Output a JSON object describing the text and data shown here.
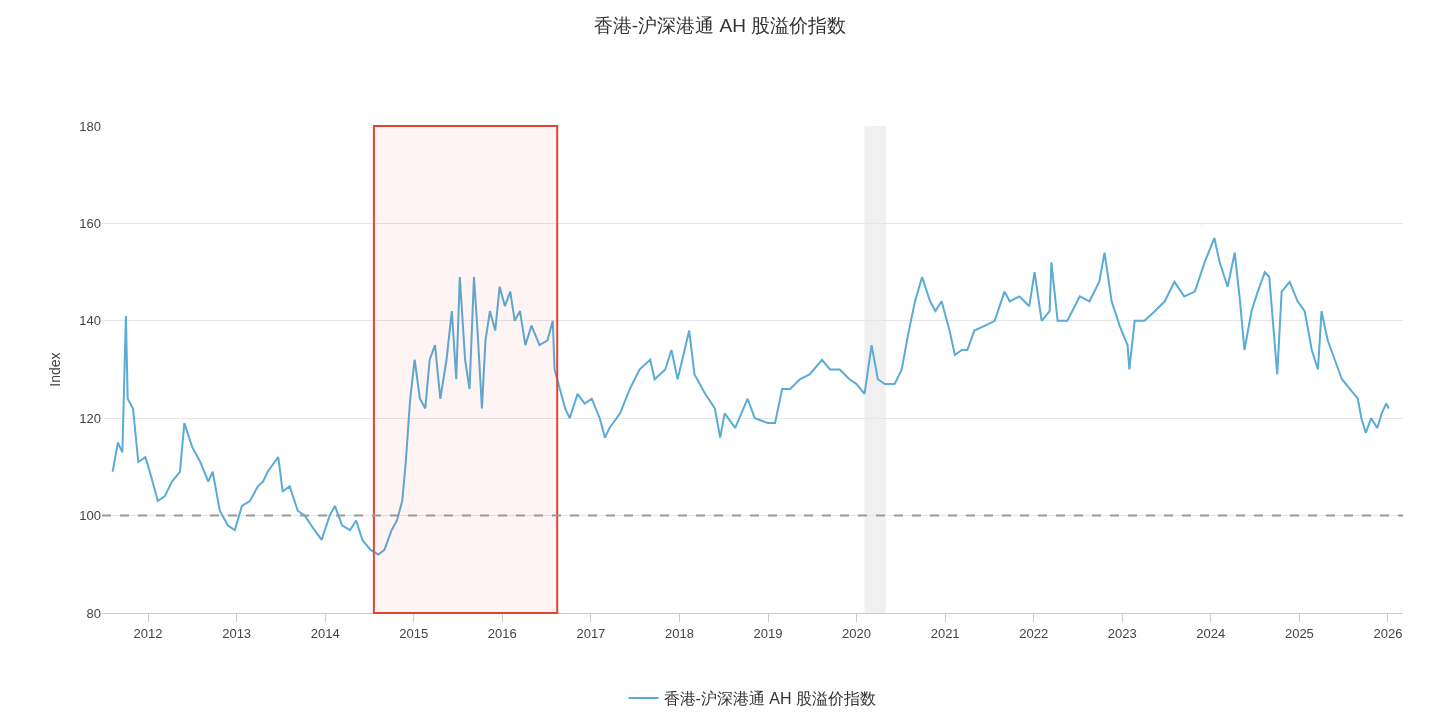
{
  "chart_data": {
    "type": "line",
    "title": "香港-沪深港通 AH 股溢价指数",
    "ylabel": "Index",
    "xlim": [
      2011.48,
      2026.17
    ],
    "xticks": [
      2012,
      2013,
      2014,
      2015,
      2016,
      2017,
      2018,
      2019,
      2020,
      2021,
      2022,
      2023,
      2024,
      2025,
      2026
    ],
    "ylim": [
      80,
      180
    ],
    "yticks": [
      80,
      100,
      120,
      140,
      160,
      180
    ],
    "grid": "y",
    "legend": "bottom",
    "marker": "none",
    "line_style": "solid",
    "x": [
      2011.6,
      2011.66,
      2011.71,
      2011.75,
      2011.77,
      2011.83,
      2011.89,
      2011.97,
      2012.02,
      2012.11,
      2012.19,
      2012.27,
      2012.36,
      2012.41,
      2012.5,
      2012.59,
      2012.68,
      2012.73,
      2012.81,
      2012.9,
      2012.98,
      2013.06,
      2013.15,
      2013.24,
      2013.3,
      2013.35,
      2013.47,
      2013.52,
      2013.6,
      2013.69,
      2013.77,
      2013.88,
      2013.96,
      2014.05,
      2014.11,
      2014.19,
      2014.28,
      2014.35,
      2014.42,
      2014.51,
      2014.6,
      2014.67,
      2014.75,
      2014.81,
      2014.87,
      2014.91,
      2014.96,
      2015.01,
      2015.07,
      2015.13,
      2015.18,
      2015.24,
      2015.3,
      2015.37,
      2015.43,
      2015.48,
      2015.52,
      2015.58,
      2015.63,
      2015.68,
      2015.72,
      2015.77,
      2015.81,
      2015.86,
      2015.92,
      2015.97,
      2016.03,
      2016.09,
      2016.14,
      2016.2,
      2016.26,
      2016.33,
      2016.42,
      2016.51,
      2016.57,
      2016.59,
      2016.65,
      2016.71,
      2016.76,
      2016.85,
      2016.93,
      2017.01,
      2017.1,
      2017.16,
      2017.21,
      2017.33,
      2017.44,
      2017.55,
      2017.67,
      2017.72,
      2017.84,
      2017.91,
      2017.98,
      2018.11,
      2018.17,
      2018.29,
      2018.4,
      2018.46,
      2018.51,
      2018.63,
      2018.77,
      2018.85,
      2019.0,
      2019.08,
      2019.16,
      2019.25,
      2019.36,
      2019.47,
      2019.61,
      2019.7,
      2019.81,
      2019.92,
      2020.0,
      2020.09,
      2020.17,
      2020.24,
      2020.32,
      2020.43,
      2020.51,
      2020.58,
      2020.66,
      2020.74,
      2020.83,
      2020.89,
      2020.96,
      2021.05,
      2021.11,
      2021.19,
      2021.25,
      2021.33,
      2021.45,
      2021.56,
      2021.67,
      2021.73,
      2021.84,
      2021.95,
      2022.01,
      2022.09,
      2022.18,
      2022.2,
      2022.27,
      2022.38,
      2022.52,
      2022.63,
      2022.74,
      2022.8,
      2022.88,
      2022.97,
      2023.06,
      2023.08,
      2023.14,
      2023.25,
      2023.37,
      2023.48,
      2023.59,
      2023.7,
      2023.82,
      2023.93,
      2024.04,
      2024.1,
      2024.19,
      2024.27,
      2024.33,
      2024.38,
      2024.46,
      2024.53,
      2024.61,
      2024.66,
      2024.75,
      2024.8,
      2024.89,
      2024.98,
      2025.06,
      2025.14,
      2025.21,
      2025.25,
      2025.32,
      2025.4,
      2025.48,
      2025.57,
      2025.66,
      2025.7,
      2025.75,
      2025.81,
      2025.88,
      2025.93,
      2025.98,
      2026.01
    ],
    "series": [
      {
        "name": "香港-沪深港通 AH 股溢价指数",
        "color": "#5aabd6",
        "values": [
          109,
          115,
          113,
          141,
          124,
          122,
          111,
          112,
          109,
          103,
          104,
          107,
          109,
          119,
          114,
          111,
          107,
          109,
          101,
          98,
          97,
          102,
          103,
          106,
          107,
          109,
          112,
          105,
          106,
          101,
          100,
          97,
          95,
          100,
          102,
          98,
          97,
          99,
          95,
          93,
          92,
          93,
          97,
          99,
          103,
          111,
          124,
          132,
          124,
          122,
          132,
          135,
          124,
          132,
          142,
          128,
          149,
          132,
          126,
          149,
          138,
          122,
          136,
          142,
          138,
          147,
          143,
          146,
          140,
          142,
          135,
          139,
          135,
          136,
          140,
          130,
          126,
          122,
          120,
          125,
          123,
          124,
          120,
          116,
          118,
          121,
          126,
          130,
          132,
          128,
          130,
          134,
          128,
          138,
          129,
          125,
          122,
          116,
          121,
          118,
          124,
          120,
          119,
          119,
          126,
          126,
          128,
          129,
          132,
          130,
          130,
          128,
          127,
          125,
          135,
          128,
          127,
          127,
          130,
          137,
          144,
          149,
          144,
          142,
          144,
          138,
          133,
          134,
          134,
          138,
          139,
          140,
          146,
          144,
          145,
          143,
          150,
          140,
          142,
          152,
          140,
          140,
          145,
          144,
          148,
          154,
          144,
          139,
          135,
          130,
          140,
          140,
          142,
          144,
          148,
          145,
          146,
          152,
          157,
          152,
          147,
          154,
          144,
          134,
          142,
          146,
          150,
          149,
          129,
          146,
          148,
          144,
          142,
          134,
          130,
          142,
          136,
          132,
          128,
          126,
          124,
          120,
          117,
          120,
          118,
          121,
          123,
          122
        ]
      }
    ],
    "ref_lines": [
      {
        "axis": "y",
        "value": 100,
        "color": "#999999",
        "line_style": "dashed"
      }
    ],
    "bands": [
      {
        "axis": "x",
        "from": 2020.09,
        "to": 2020.33,
        "color": "#f0f0f0"
      },
      {
        "axis": "x",
        "from": 2014.55,
        "to": 2016.62,
        "color": "#e0452f"
      }
    ]
  }
}
